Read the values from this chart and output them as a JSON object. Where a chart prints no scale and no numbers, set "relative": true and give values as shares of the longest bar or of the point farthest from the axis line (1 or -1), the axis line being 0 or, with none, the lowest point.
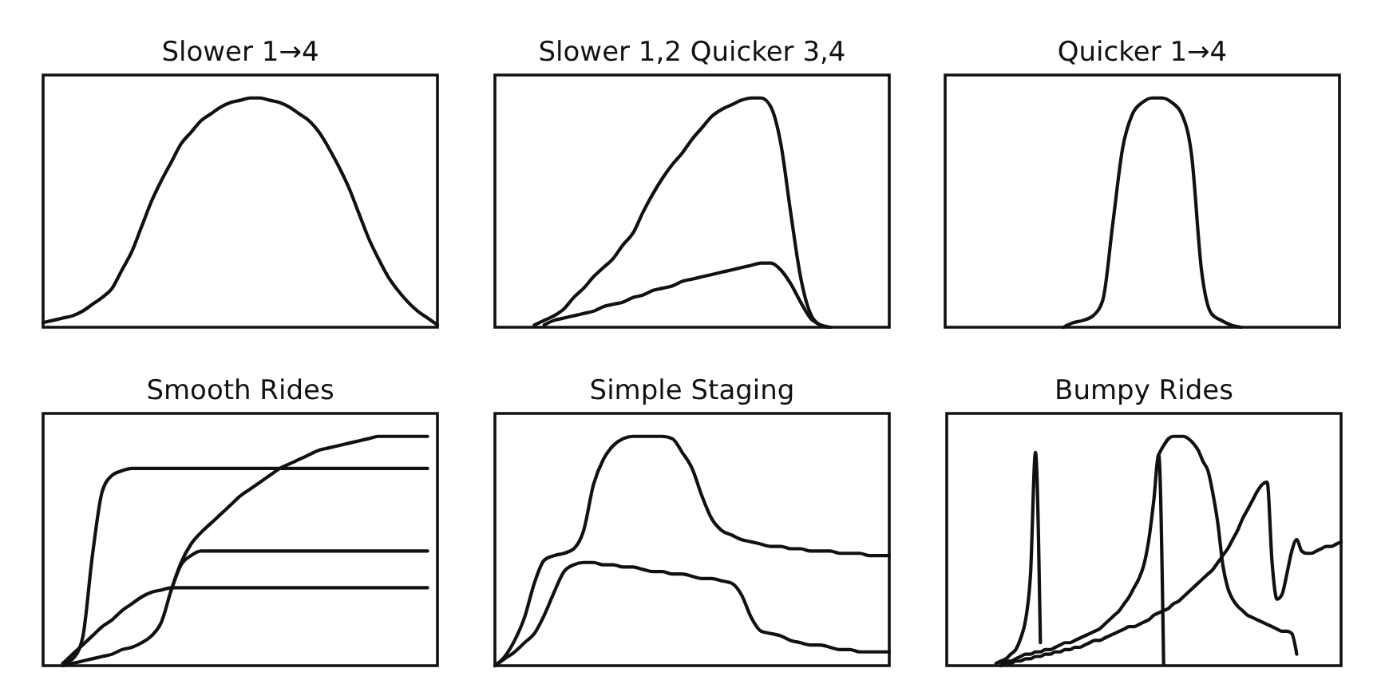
{
  "chart_data": [
    {
      "type": "line",
      "title": "Slower 1→4",
      "relative": true,
      "tick_labels": false,
      "categories": [
        null,
        null,
        null,
        null,
        null,
        null,
        null,
        null,
        null,
        null,
        null,
        null,
        null,
        null,
        null,
        null,
        null,
        null,
        null,
        null,
        null,
        null,
        null,
        null,
        null,
        null,
        null,
        null,
        null,
        null,
        null,
        null,
        null,
        null,
        null,
        null,
        null,
        null,
        null,
        null,
        null
      ],
      "series": [
        {
          "color": "#111111",
          "values": [
            0.02,
            0.03,
            0.04,
            0.05,
            0.07,
            0.1,
            0.13,
            0.17,
            0.25,
            0.33,
            0.44,
            0.55,
            0.64,
            0.72,
            0.8,
            0.85,
            0.9,
            0.93,
            0.96,
            0.98,
            0.99,
            1.0,
            1.0,
            0.99,
            0.98,
            0.96,
            0.93,
            0.9,
            0.85,
            0.78,
            0.7,
            0.61,
            0.5,
            0.39,
            0.3,
            0.22,
            0.16,
            0.11,
            0.07,
            0.04,
            0.01
          ]
        }
      ]
    },
    {
      "type": "line",
      "title": "Slower 1,2 Quicker 3,4",
      "relative": true,
      "tick_labels": false,
      "categories": [
        null,
        null,
        null,
        null,
        null,
        null,
        null,
        null,
        null,
        null,
        null,
        null,
        null,
        null,
        null,
        null,
        null,
        null,
        null,
        null,
        null,
        null,
        null,
        null,
        null,
        null,
        null,
        null,
        null,
        null,
        null,
        null,
        null,
        null,
        null,
        null,
        null,
        null,
        null,
        null,
        null
      ],
      "series": [
        {
          "color": "#111111",
          "values": [
            null,
            null,
            null,
            null,
            0.01,
            0.03,
            0.05,
            0.08,
            0.13,
            0.17,
            0.22,
            0.26,
            0.3,
            0.36,
            0.41,
            0.5,
            0.58,
            0.65,
            0.71,
            0.76,
            0.82,
            0.87,
            0.92,
            0.95,
            0.97,
            0.99,
            1.0,
            1.0,
            0.96,
            0.8,
            0.5,
            0.22,
            0.06,
            0.01,
            0.0,
            null,
            null,
            null,
            null,
            null,
            null
          ]
        },
        {
          "color": "#111111",
          "values": [
            null,
            null,
            null,
            null,
            null,
            0.01,
            0.03,
            0.04,
            0.05,
            0.06,
            0.07,
            0.09,
            0.1,
            0.11,
            0.13,
            0.14,
            0.16,
            0.17,
            0.18,
            0.2,
            0.21,
            0.22,
            0.23,
            0.24,
            0.25,
            0.26,
            0.27,
            0.28,
            0.28,
            0.25,
            0.19,
            0.11,
            0.04,
            0.01,
            0.0,
            null,
            null,
            null,
            null,
            null,
            null
          ]
        }
      ]
    },
    {
      "type": "line",
      "title": "Quicker 1→4",
      "relative": true,
      "tick_labels": false,
      "categories": [
        null,
        null,
        null,
        null,
        null,
        null,
        null,
        null,
        null,
        null,
        null,
        null,
        null,
        null,
        null,
        null,
        null,
        null,
        null,
        null,
        null,
        null,
        null,
        null,
        null,
        null,
        null,
        null,
        null,
        null,
        null,
        null,
        null,
        null,
        null,
        null,
        null,
        null,
        null,
        null,
        null
      ],
      "series": [
        {
          "color": "#111111",
          "values": [
            null,
            null,
            null,
            null,
            null,
            null,
            null,
            null,
            null,
            null,
            null,
            null,
            0.0,
            0.02,
            0.03,
            0.05,
            0.12,
            0.45,
            0.78,
            0.93,
            0.98,
            1.0,
            1.0,
            0.98,
            0.93,
            0.75,
            0.25,
            0.06,
            0.03,
            0.01,
            0.0,
            null,
            null,
            null,
            null,
            null,
            null,
            null,
            null,
            null,
            null
          ]
        }
      ]
    },
    {
      "type": "line",
      "title": "Smooth Rides",
      "relative": true,
      "tick_labels": false,
      "categories": [
        null,
        null,
        null,
        null,
        null,
        null,
        null,
        null,
        null,
        null,
        null,
        null,
        null,
        null,
        null,
        null,
        null,
        null,
        null,
        null,
        null,
        null,
        null,
        null,
        null,
        null,
        null,
        null,
        null,
        null,
        null,
        null,
        null,
        null,
        null,
        null,
        null,
        null,
        null,
        null,
        null
      ],
      "series": [
        {
          "color": "#111111",
          "values": [
            null,
            null,
            0.01,
            0.03,
            0.12,
            0.48,
            0.76,
            0.83,
            0.85,
            0.86,
            0.86,
            0.86,
            0.86,
            0.86,
            0.86,
            0.86,
            0.86,
            0.86,
            0.86,
            0.86,
            0.86,
            0.86,
            0.86,
            0.86,
            0.86,
            0.86,
            0.86,
            0.86,
            0.86,
            0.86,
            0.86,
            0.86,
            0.86,
            0.86,
            0.86,
            0.86,
            0.86,
            0.86,
            0.86,
            0.86,
            null
          ]
        },
        {
          "color": "#111111",
          "values": [
            null,
            null,
            0.0,
            0.01,
            0.02,
            0.03,
            0.04,
            0.05,
            0.07,
            0.08,
            0.1,
            0.13,
            0.19,
            0.33,
            0.45,
            0.53,
            0.58,
            0.62,
            0.66,
            0.7,
            0.74,
            0.77,
            0.8,
            0.83,
            0.86,
            0.88,
            0.9,
            0.92,
            0.94,
            0.95,
            0.96,
            0.97,
            0.98,
            0.99,
            1.0,
            1.0,
            1.0,
            1.0,
            1.0,
            1.0,
            null
          ]
        },
        {
          "color": "#111111",
          "values": [
            null,
            null,
            null,
            null,
            null,
            null,
            null,
            null,
            null,
            null,
            null,
            null,
            null,
            0.33,
            0.44,
            0.48,
            0.5,
            0.5,
            0.5,
            0.5,
            0.5,
            0.5,
            0.5,
            0.5,
            0.5,
            0.5,
            0.5,
            0.5,
            0.5,
            0.5,
            0.5,
            0.5,
            0.5,
            0.5,
            0.5,
            0.5,
            0.5,
            0.5,
            0.5,
            0.5,
            null
          ]
        },
        {
          "color": "#111111",
          "values": [
            null,
            null,
            0.01,
            0.05,
            0.09,
            0.13,
            0.17,
            0.2,
            0.24,
            0.27,
            0.3,
            0.32,
            0.33,
            0.34,
            0.34,
            0.34,
            0.34,
            0.34,
            0.34,
            0.34,
            0.34,
            0.34,
            0.34,
            0.34,
            0.34,
            0.34,
            0.34,
            0.34,
            0.34,
            0.34,
            0.34,
            0.34,
            0.34,
            0.34,
            0.34,
            0.34,
            0.34,
            0.34,
            0.34,
            0.34,
            null
          ]
        }
      ]
    },
    {
      "type": "line",
      "title": "Simple Staging",
      "relative": true,
      "tick_labels": false,
      "categories": [
        null,
        null,
        null,
        null,
        null,
        null,
        null,
        null,
        null,
        null,
        null,
        null,
        null,
        null,
        null,
        null,
        null,
        null,
        null,
        null,
        null,
        null,
        null,
        null,
        null,
        null,
        null,
        null,
        null,
        null,
        null,
        null,
        null,
        null,
        null,
        null,
        null,
        null,
        null,
        null,
        null
      ],
      "series": [
        {
          "color": "#111111",
          "values": [
            0.0,
            0.04,
            0.11,
            0.21,
            0.36,
            0.46,
            0.48,
            0.49,
            0.51,
            0.59,
            0.79,
            0.9,
            0.96,
            0.99,
            1.0,
            1.0,
            1.0,
            1.0,
            0.99,
            0.93,
            0.86,
            0.74,
            0.64,
            0.59,
            0.57,
            0.55,
            0.54,
            0.53,
            0.52,
            0.52,
            0.51,
            0.51,
            0.5,
            0.5,
            0.5,
            0.49,
            0.49,
            0.49,
            0.48,
            0.48,
            0.48
          ]
        },
        {
          "color": "#111111",
          "values": [
            0.0,
            0.03,
            0.06,
            0.1,
            0.14,
            0.22,
            0.32,
            0.41,
            0.44,
            0.45,
            0.45,
            0.44,
            0.44,
            0.43,
            0.43,
            0.42,
            0.41,
            0.41,
            0.4,
            0.4,
            0.39,
            0.38,
            0.38,
            0.37,
            0.36,
            0.31,
            0.21,
            0.15,
            0.14,
            0.13,
            0.11,
            0.1,
            0.09,
            0.09,
            0.08,
            0.07,
            0.07,
            0.06,
            0.06,
            0.06,
            0.06
          ]
        }
      ]
    },
    {
      "type": "line",
      "title": "Bumpy Rides",
      "relative": true,
      "tick_labels": false,
      "categories": [
        null,
        null,
        null,
        null,
        null,
        null,
        null,
        null,
        null,
        null,
        null,
        null,
        null,
        null,
        null,
        null,
        null,
        null,
        null,
        null,
        null,
        null,
        null,
        null,
        null,
        null,
        null,
        null,
        null,
        null,
        null,
        null,
        null,
        null,
        null,
        null,
        null,
        null,
        null,
        null,
        null,
        null,
        null,
        null,
        null,
        null,
        null,
        null,
        null,
        null,
        null,
        null,
        null,
        null,
        null,
        null,
        null,
        null,
        null,
        null,
        null,
        null,
        null,
        null,
        null,
        null,
        null,
        null,
        null,
        null,
        null,
        null,
        null,
        null,
        null,
        null,
        null,
        null,
        null,
        null,
        null
      ],
      "series": [
        {
          "color": "#111111",
          "values": [
            null,
            null,
            null,
            null,
            null,
            null,
            null,
            null,
            null,
            null,
            0.01,
            0.02,
            0.03,
            0.05,
            0.07,
            0.12,
            0.2,
            0.4,
            0.93,
            0.1,
            null,
            null,
            null,
            null,
            null,
            null,
            null,
            null,
            null,
            null,
            null,
            null,
            null,
            null,
            null,
            null,
            null,
            null,
            null,
            null,
            null,
            null,
            null,
            null,
            null,
            null,
            null,
            null,
            null,
            null,
            null,
            null,
            null,
            null,
            null,
            null,
            null,
            null,
            null,
            null,
            null,
            null,
            null,
            null,
            null,
            null,
            null,
            null,
            null,
            null,
            null,
            null,
            null,
            null,
            null,
            null,
            null,
            null,
            null,
            null,
            null
          ]
        },
        {
          "color": "#111111",
          "values": [
            null,
            null,
            null,
            null,
            null,
            null,
            null,
            null,
            null,
            null,
            null,
            0.01,
            0.02,
            0.02,
            0.03,
            0.04,
            0.05,
            0.05,
            0.06,
            0.06,
            0.07,
            0.07,
            0.08,
            0.09,
            0.1,
            0.1,
            0.11,
            0.12,
            0.13,
            0.14,
            0.15,
            0.16,
            0.18,
            0.2,
            0.22,
            0.24,
            0.27,
            0.3,
            0.34,
            0.38,
            0.44,
            0.55,
            0.72,
            0.92,
            0.01,
            null,
            null,
            null,
            null,
            null,
            null,
            null,
            null,
            null,
            null,
            null,
            null,
            null,
            null,
            null,
            null,
            null,
            null,
            null,
            null,
            null,
            null,
            null,
            null,
            null,
            null,
            null,
            null,
            null,
            null,
            null,
            null,
            null,
            null,
            null,
            null
          ]
        },
        {
          "color": "#111111",
          "values": [
            null,
            null,
            null,
            null,
            null,
            null,
            null,
            null,
            null,
            null,
            null,
            null,
            null,
            null,
            null,
            null,
            null,
            null,
            null,
            null,
            null,
            null,
            null,
            null,
            null,
            null,
            null,
            null,
            null,
            null,
            null,
            null,
            null,
            null,
            null,
            null,
            null,
            null,
            null,
            null,
            null,
            null,
            null,
            0.92,
            0.96,
            0.99,
            1.0,
            1.0,
            1.0,
            0.99,
            0.97,
            0.94,
            0.89,
            0.85,
            0.75,
            0.62,
            0.44,
            0.34,
            0.29,
            0.26,
            0.24,
            0.22,
            0.21,
            0.2,
            0.19,
            0.18,
            0.17,
            0.16,
            0.15,
            0.15,
            0.14,
            0.05,
            null,
            null,
            null,
            null,
            null,
            null,
            null,
            null,
            null
          ]
        },
        {
          "color": "#111111",
          "values": [
            null,
            null,
            null,
            null,
            null,
            null,
            null,
            null,
            null,
            null,
            null,
            0.0,
            0.01,
            0.01,
            0.02,
            0.02,
            0.03,
            0.03,
            0.04,
            0.04,
            0.05,
            0.05,
            0.06,
            0.06,
            0.07,
            0.07,
            0.08,
            0.08,
            0.09,
            0.1,
            0.11,
            0.11,
            0.12,
            0.13,
            0.14,
            0.15,
            0.16,
            0.17,
            0.17,
            0.18,
            0.19,
            0.2,
            0.22,
            0.23,
            0.24,
            0.25,
            0.27,
            0.28,
            0.3,
            0.32,
            0.34,
            0.36,
            0.38,
            0.4,
            0.42,
            0.45,
            0.48,
            0.51,
            0.55,
            0.59,
            0.64,
            0.68,
            0.72,
            0.76,
            0.79,
            0.8,
            0.45,
            0.29,
            0.31,
            0.4,
            0.5,
            0.55,
            0.5,
            0.49,
            0.49,
            0.5,
            0.51,
            0.52,
            0.52,
            0.53,
            0.54
          ]
        }
      ]
    }
  ]
}
